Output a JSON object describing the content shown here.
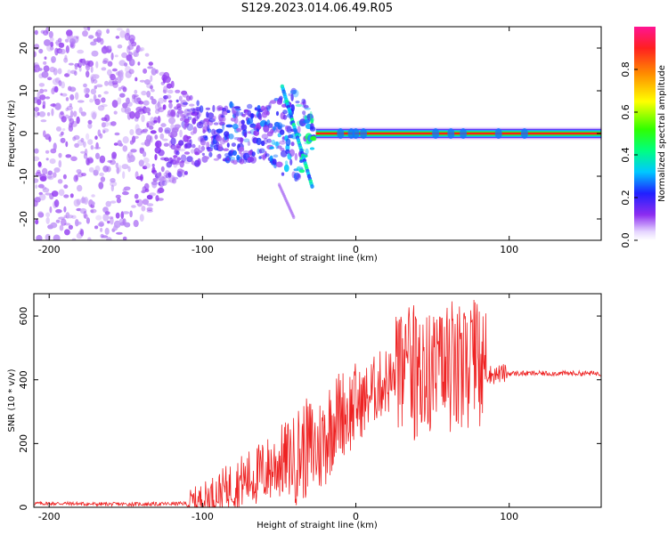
{
  "title": "S129.2023.014.06.49.R05",
  "chart_data": [
    {
      "type": "heatmap",
      "xlabel": "Height of straight line (km)",
      "ylabel": "Frequency (Hz)",
      "xlim": [
        -210,
        160
      ],
      "ylim": [
        -25,
        25
      ],
      "xticks": [
        -200,
        -100,
        0,
        100
      ],
      "yticks": [
        -20,
        -10,
        0,
        10,
        20
      ],
      "colorbar": {
        "label": "Normalized spectral amplitude",
        "range": [
          0,
          1
        ],
        "ticks": [
          0.0,
          0.2,
          0.4,
          0.6,
          0.8
        ],
        "colormap": "rainbow (white-violet-blue-cyan-green-yellow-orange-red-magenta)"
      },
      "description_points": [
        {
          "x": -200,
          "y_spread": 25,
          "amplitude": 0.12
        },
        {
          "x": -150,
          "y_spread": 25,
          "amplitude": 0.1
        },
        {
          "x": -120,
          "y_spread": 12,
          "amplitude": 0.15
        },
        {
          "x": -100,
          "y_spread": 6,
          "amplitude": 0.2
        },
        {
          "x": -80,
          "y_spread": 7,
          "amplitude": 0.25
        },
        {
          "x": -60,
          "y_spread": 6,
          "amplitude": 0.25
        },
        {
          "x": -40,
          "y_spread": 12,
          "amplitude": 0.3
        },
        {
          "x": -25,
          "y_spread": 2,
          "amplitude": 0.5
        },
        {
          "x": 0,
          "y_spread": 1.5,
          "amplitude": 0.7
        },
        {
          "x": 50,
          "y_spread": 1.2,
          "amplitude": 0.8
        },
        {
          "x": 100,
          "y_spread": 1,
          "amplitude": 0.9
        },
        {
          "x": 155,
          "y_spread": 1,
          "amplitude": 1.0
        }
      ]
    },
    {
      "type": "line",
      "xlabel": "Height of straight line (km)",
      "ylabel": "SNR (10 * v/v)",
      "xlim": [
        -210,
        160
      ],
      "ylim": [
        0,
        670
      ],
      "xticks": [
        -200,
        -100,
        0,
        100
      ],
      "yticks": [
        0,
        200,
        400,
        600
      ],
      "line_color": "#ee2222",
      "series": [
        {
          "x": [
            -210,
            -190,
            -170,
            -150,
            -130,
            -110,
            -100,
            -90,
            -80,
            -70,
            -60,
            -50,
            -40,
            -30,
            -25,
            -20,
            -15,
            -10,
            -5,
            0,
            5,
            10,
            15,
            20,
            25,
            30,
            35,
            40,
            45,
            50,
            55,
            60,
            65,
            70,
            75,
            80,
            85,
            90,
            95,
            100,
            110,
            120,
            130,
            140,
            150,
            160
          ],
          "values": [
            12,
            12,
            10,
            10,
            10,
            12,
            25,
            45,
            70,
            90,
            110,
            140,
            160,
            190,
            180,
            220,
            270,
            300,
            300,
            320,
            330,
            360,
            380,
            400,
            390,
            410,
            400,
            410,
            415,
            420,
            420,
            420,
            415,
            415,
            420,
            415,
            420,
            415,
            420,
            420,
            420,
            420,
            420,
            420,
            420,
            420
          ]
        }
      ],
      "approx_envelope_max": [
        {
          "x": -30,
          "y": 320
        },
        {
          "x": -15,
          "y": 370
        },
        {
          "x": 30,
          "y": 620
        },
        {
          "x": 38,
          "y": 610
        },
        {
          "x": 75,
          "y": 665
        }
      ]
    }
  ]
}
